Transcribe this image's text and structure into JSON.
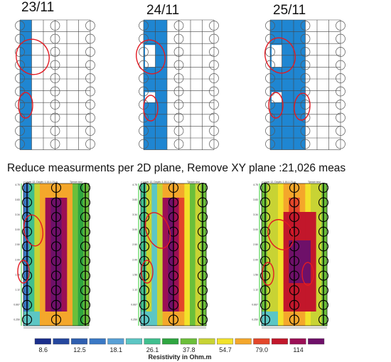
{
  "top_panels": [
    {
      "date": "23/11",
      "blue_cols": [
        0
      ],
      "holes": [
        {
          "col": 1,
          "rows": [
            2,
            3
          ]
        },
        {
          "col": 1,
          "rows": [
            6,
            6
          ]
        }
      ]
    },
    {
      "date": "24/11",
      "blue_cols": [
        0,
        1
      ],
      "holes": [
        {
          "col": 0,
          "rows": [
            2,
            3
          ]
        },
        {
          "col": 0,
          "rows": [
            6,
            6
          ]
        }
      ]
    },
    {
      "date": "25/11",
      "blue_cols": [
        0,
        1,
        2
      ],
      "holes": [
        {
          "col": 0,
          "rows": [
            2,
            3
          ]
        },
        {
          "col": 0,
          "rows": [
            6,
            6
          ]
        }
      ]
    }
  ],
  "caption": "Reduce measurments per 2D plane, Remove XY plane :21,026 meas",
  "bottom_panels": [
    {
      "title": "z Layer 12, Depth: 1.16-1.21 m",
      "title2": "Tjerner test",
      "ytick_labels": [
        "4.75",
        "3.83",
        "3.34",
        "3.00",
        "2.50",
        "2.00",
        "1.56",
        "1.12",
        "0.667",
        "0.250"
      ]
    },
    {
      "title": "z Layer 12, Depth: 1.16-1.21 m",
      "title2": "Tjerner test",
      "ytick_labels": [
        "4.75",
        "3.83",
        "3.34",
        "3.00",
        "2.50",
        "2.00",
        "1.56",
        "1.12",
        "0.667",
        "0.250"
      ]
    },
    {
      "title": "z Layer 12, Depth: 1.16-1.21 m",
      "title2": "Tjerner test",
      "ytick_labels": [
        "4.75",
        "3.83",
        "3.34",
        "3.00",
        "2.50",
        "2.00",
        "1.56",
        "1.12",
        "0.667",
        "0.250"
      ]
    }
  ],
  "colorbar": {
    "colors": [
      "#1b2f8c",
      "#25479e",
      "#2f5fb0",
      "#3a78c5",
      "#58a0d6",
      "#5cc6c4",
      "#3fbf8e",
      "#2fa640",
      "#6bbf3a",
      "#c8d334",
      "#f2e22a",
      "#f4a72b",
      "#e3462a",
      "#c2172b",
      "#9b0f55",
      "#6e1069"
    ],
    "labels": [
      "8.6",
      "12.5",
      "18.1",
      "26.1",
      "37.8",
      "54.7",
      "79.0",
      "114"
    ],
    "title": "Resistivity in Ohm.m"
  },
  "colors": {
    "grid_blue": "#1f86d2",
    "ellipse_red": "#e21b23",
    "electrode": "#000000"
  }
}
